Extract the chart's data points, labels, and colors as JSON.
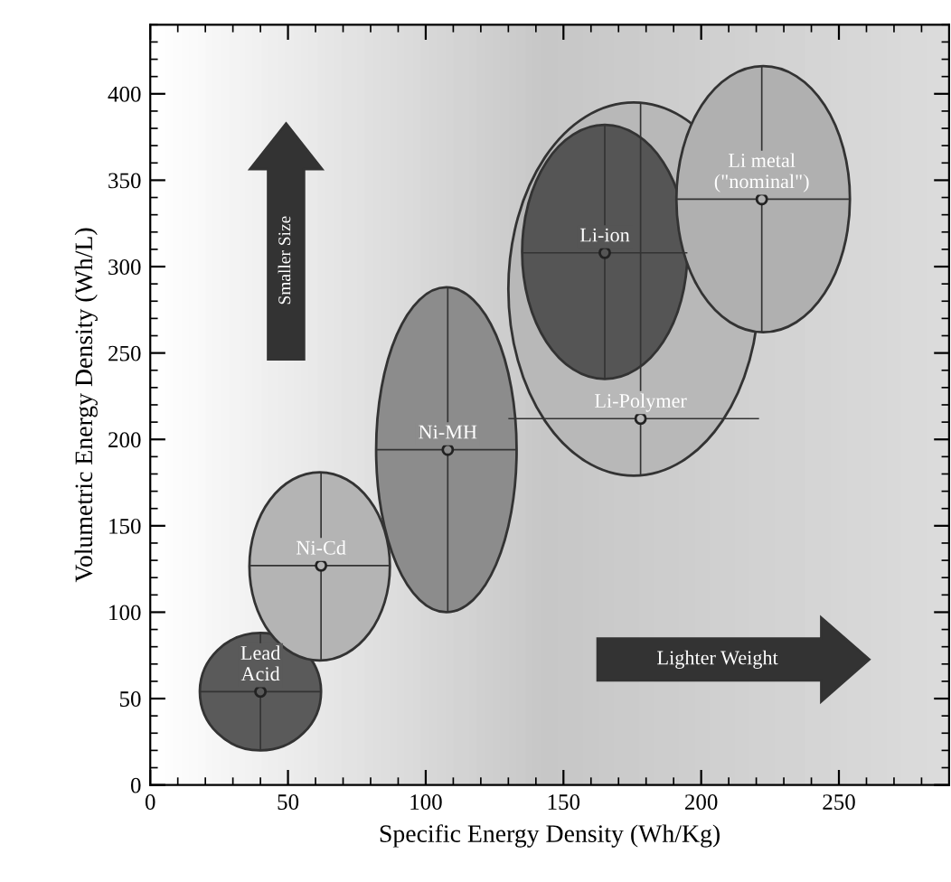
{
  "chart_data": {
    "type": "scatter",
    "xlabel": "Specific Energy Density (Wh/Kg)",
    "ylabel": "Volumetric Energy Density (Wh/L)",
    "xlim": [
      0,
      290
    ],
    "ylim": [
      0,
      440
    ],
    "xticks": [
      0,
      50,
      100,
      150,
      200,
      250
    ],
    "yticks": [
      0,
      50,
      100,
      150,
      200,
      250,
      300,
      350,
      400
    ],
    "series": [
      {
        "name": "Lead\nAcid",
        "color": "#5a5a5a",
        "x": [
          40
        ],
        "values": [
          54
        ],
        "xerrors": [
          [
            18,
            62
          ]
        ],
        "errors": [
          [
            20,
            88
          ]
        ]
      },
      {
        "name": "Ni-Cd",
        "color": "#b4b4b4",
        "x": [
          62
        ],
        "values": [
          127
        ],
        "xerrors": [
          [
            36,
            87
          ]
        ],
        "errors": [
          [
            72,
            181
          ]
        ]
      },
      {
        "name": "Ni-MH",
        "color": "#8c8c8c",
        "x": [
          108
        ],
        "values": [
          194
        ],
        "xerrors": [
          [
            82,
            133
          ]
        ],
        "errors": [
          [
            100,
            288
          ]
        ]
      },
      {
        "name": "Li-Polymer",
        "color": "#b8b8b8",
        "x": [
          178
        ],
        "values": [
          212
        ],
        "xerrors": [
          [
            130,
            221
          ]
        ],
        "errors": [
          [
            179,
            395
          ]
        ]
      },
      {
        "name": "Li-ion",
        "color": "#555555",
        "x": [
          165
        ],
        "values": [
          308
        ],
        "xerrors": [
          [
            135,
            195
          ]
        ],
        "errors": [
          [
            235,
            382
          ]
        ]
      },
      {
        "name": "Li metal\n(\"nominal\")",
        "color": "#b0b0b0",
        "x": [
          222
        ],
        "values": [
          339
        ],
        "xerrors": [
          [
            191,
            254
          ]
        ],
        "errors": [
          [
            262,
            416
          ]
        ]
      }
    ],
    "annotations": [
      "Smaller Size",
      "Lighter Weight"
    ]
  }
}
